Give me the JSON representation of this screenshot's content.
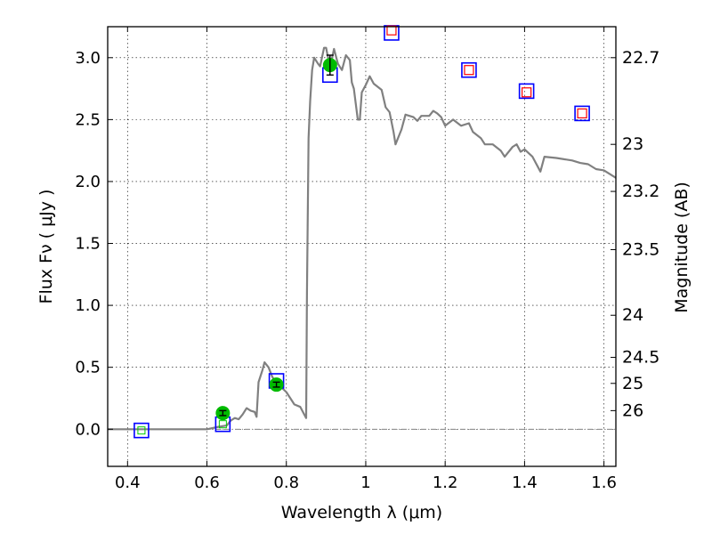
{
  "chart_data": {
    "type": "scatter",
    "xlabel": "Wavelength  λ (μm)",
    "ylabel": "Flux  Fν  ( μJy )",
    "ylabel_right": "Magnitude (AB)",
    "xlim": [
      0.35,
      1.63
    ],
    "ylim": [
      -0.3,
      3.25
    ],
    "grid": true,
    "x_ticks": [
      0.4,
      0.6,
      0.8,
      1.0,
      1.2,
      1.4,
      1.6
    ],
    "x_tick_labels": [
      "0.4",
      "0.6",
      "0.8",
      "1",
      "1.2",
      "1.4",
      "1.6"
    ],
    "y_ticks": [
      0.0,
      0.5,
      1.0,
      1.5,
      2.0,
      2.5,
      3.0
    ],
    "y_tick_labels": [
      "0.0",
      "0.5",
      "1.0",
      "1.5",
      "2.0",
      "2.5",
      "3.0"
    ],
    "right_ticks": [
      {
        "label": "22.7",
        "flux": 3.0
      },
      {
        "label": "23",
        "flux": 2.3
      },
      {
        "label": "23.2",
        "flux": 1.92
      },
      {
        "label": "23.5",
        "flux": 1.45
      },
      {
        "label": "24",
        "flux": 0.92
      },
      {
        "label": "24.5",
        "flux": 0.58
      },
      {
        "label": "25",
        "flux": 0.37
      },
      {
        "label": "26",
        "flux": 0.15
      }
    ],
    "series": [
      {
        "kind": "line",
        "color": "#808080",
        "points": [
          [
            0.35,
            0.0
          ],
          [
            0.6,
            0.0
          ],
          [
            0.63,
            0.02
          ],
          [
            0.65,
            0.03
          ],
          [
            0.66,
            0.07
          ],
          [
            0.67,
            0.09
          ],
          [
            0.68,
            0.08
          ],
          [
            0.69,
            0.12
          ],
          [
            0.7,
            0.17
          ],
          [
            0.71,
            0.15
          ],
          [
            0.72,
            0.14
          ],
          [
            0.725,
            0.1
          ],
          [
            0.73,
            0.38
          ],
          [
            0.74,
            0.48
          ],
          [
            0.745,
            0.54
          ],
          [
            0.755,
            0.5
          ],
          [
            0.765,
            0.42
          ],
          [
            0.78,
            0.36
          ],
          [
            0.8,
            0.3
          ],
          [
            0.82,
            0.2
          ],
          [
            0.835,
            0.18
          ],
          [
            0.845,
            0.12
          ],
          [
            0.85,
            0.09
          ],
          [
            0.852,
            1.1
          ],
          [
            0.856,
            2.35
          ],
          [
            0.86,
            2.65
          ],
          [
            0.865,
            2.9
          ],
          [
            0.87,
            3.0
          ],
          [
            0.88,
            2.95
          ],
          [
            0.885,
            2.93
          ],
          [
            0.895,
            3.08
          ],
          [
            0.9,
            3.08
          ],
          [
            0.91,
            2.92
          ],
          [
            0.92,
            3.07
          ],
          [
            0.93,
            2.95
          ],
          [
            0.94,
            2.9
          ],
          [
            0.95,
            3.02
          ],
          [
            0.96,
            2.98
          ],
          [
            0.965,
            2.8
          ],
          [
            0.97,
            2.75
          ],
          [
            0.98,
            2.5
          ],
          [
            0.985,
            2.5
          ],
          [
            0.99,
            2.72
          ],
          [
            1.0,
            2.78
          ],
          [
            1.01,
            2.85
          ],
          [
            1.02,
            2.79
          ],
          [
            1.04,
            2.74
          ],
          [
            1.05,
            2.6
          ],
          [
            1.06,
            2.56
          ],
          [
            1.07,
            2.4
          ],
          [
            1.075,
            2.3
          ],
          [
            1.09,
            2.42
          ],
          [
            1.1,
            2.54
          ],
          [
            1.12,
            2.52
          ],
          [
            1.13,
            2.49
          ],
          [
            1.14,
            2.53
          ],
          [
            1.16,
            2.53
          ],
          [
            1.17,
            2.57
          ],
          [
            1.18,
            2.55
          ],
          [
            1.19,
            2.52
          ],
          [
            1.2,
            2.45
          ],
          [
            1.22,
            2.5
          ],
          [
            1.24,
            2.45
          ],
          [
            1.26,
            2.47
          ],
          [
            1.27,
            2.4
          ],
          [
            1.29,
            2.35
          ],
          [
            1.3,
            2.3
          ],
          [
            1.32,
            2.3
          ],
          [
            1.34,
            2.25
          ],
          [
            1.35,
            2.2
          ],
          [
            1.37,
            2.28
          ],
          [
            1.38,
            2.3
          ],
          [
            1.39,
            2.24
          ],
          [
            1.4,
            2.26
          ],
          [
            1.42,
            2.2
          ],
          [
            1.44,
            2.08
          ],
          [
            1.45,
            2.2
          ],
          [
            1.48,
            2.19
          ],
          [
            1.52,
            2.17
          ],
          [
            1.54,
            2.15
          ],
          [
            1.56,
            2.14
          ],
          [
            1.58,
            2.1
          ],
          [
            1.6,
            2.09
          ],
          [
            1.63,
            2.03
          ]
        ]
      },
      {
        "kind": "blue-squares",
        "color": "#0000ff",
        "points": [
          [
            0.435,
            -0.01
          ],
          [
            0.64,
            0.04
          ],
          [
            0.775,
            0.39
          ],
          [
            0.91,
            2.86
          ],
          [
            1.065,
            3.2
          ],
          [
            1.26,
            2.9
          ],
          [
            1.405,
            2.73
          ],
          [
            1.545,
            2.55
          ]
        ]
      },
      {
        "kind": "red-squares",
        "color": "#ff0000",
        "points": [
          [
            1.065,
            3.22
          ],
          [
            1.26,
            2.9
          ],
          [
            1.405,
            2.72
          ],
          [
            1.545,
            2.55
          ]
        ]
      },
      {
        "kind": "green-markers",
        "color": "#00cc00",
        "points": [
          [
            0.435,
            -0.01
          ],
          [
            0.64,
            0.04
          ]
        ]
      },
      {
        "kind": "green-circles-errorbars",
        "color": "#00bb00",
        "points": [
          {
            "x": 0.64,
            "y": 0.13,
            "err": 0.02
          },
          {
            "x": 0.775,
            "y": 0.36,
            "err": 0.02
          },
          {
            "x": 0.91,
            "y": 2.94,
            "err": 0.08
          }
        ]
      }
    ]
  }
}
